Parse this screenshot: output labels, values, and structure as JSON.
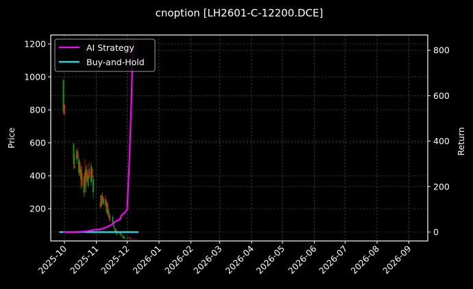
{
  "chart_data": {
    "type": "line",
    "title": "cnoption [LH2601-C-12200.DCE]",
    "xlabel": "",
    "ylabel": "Price",
    "y2label": "Return",
    "ylim": [
      13,
      1250
    ],
    "y2lim": [
      -40,
      866
    ],
    "grid": true,
    "legend_position": "upper left",
    "x_tick_labels": [
      "2025-10",
      "2025-11",
      "2025-12",
      "2026-01",
      "2026-02",
      "2026-03",
      "2026-04",
      "2026-05",
      "2026-06",
      "2026-07",
      "2026-08",
      "2026-09"
    ],
    "y_tick_labels": [
      "200",
      "400",
      "600",
      "800",
      "1000",
      "1200"
    ],
    "y2_tick_labels": [
      "0",
      "200",
      "400",
      "600",
      "800"
    ],
    "legend": [
      "AI Strategy",
      "Buy-and-Hold"
    ],
    "candles": {
      "description": "Daily OHLC candlesticks on the Price (left) axis; green = up, red = down",
      "data": [
        {
          "date": "2025-09-30",
          "open": 790,
          "high": 985,
          "low": 775,
          "close": 980,
          "color": "green"
        },
        {
          "date": "2025-10-01",
          "open": 830,
          "high": 835,
          "low": 760,
          "close": 775,
          "color": "red"
        },
        {
          "date": "2025-10-10",
          "open": 470,
          "high": 600,
          "low": 440,
          "close": 590,
          "color": "green"
        },
        {
          "date": "2025-10-11",
          "open": 460,
          "high": 530,
          "low": 440,
          "close": 450,
          "color": "red"
        },
        {
          "date": "2025-10-13",
          "open": 500,
          "high": 560,
          "low": 470,
          "close": 550,
          "color": "green"
        },
        {
          "date": "2025-10-14",
          "open": 540,
          "high": 570,
          "low": 500,
          "close": 510,
          "color": "red"
        },
        {
          "date": "2025-10-15",
          "open": 420,
          "high": 520,
          "low": 400,
          "close": 500,
          "color": "green"
        },
        {
          "date": "2025-10-16",
          "open": 480,
          "high": 490,
          "low": 400,
          "close": 410,
          "color": "red"
        },
        {
          "date": "2025-10-17",
          "open": 380,
          "high": 460,
          "low": 320,
          "close": 440,
          "color": "green"
        },
        {
          "date": "2025-10-18",
          "open": 420,
          "high": 460,
          "low": 330,
          "close": 340,
          "color": "red"
        },
        {
          "date": "2025-10-20",
          "open": 300,
          "high": 400,
          "low": 270,
          "close": 390,
          "color": "green"
        },
        {
          "date": "2025-10-21",
          "open": 420,
          "high": 500,
          "low": 290,
          "close": 330,
          "color": "red"
        },
        {
          "date": "2025-10-22",
          "open": 380,
          "high": 460,
          "low": 300,
          "close": 440,
          "color": "green"
        },
        {
          "date": "2025-10-23",
          "open": 430,
          "high": 470,
          "low": 360,
          "close": 370,
          "color": "red"
        },
        {
          "date": "2025-10-24",
          "open": 340,
          "high": 410,
          "low": 330,
          "close": 400,
          "color": "green"
        },
        {
          "date": "2025-10-25",
          "open": 440,
          "high": 480,
          "low": 380,
          "close": 390,
          "color": "red"
        },
        {
          "date": "2025-10-27",
          "open": 360,
          "high": 480,
          "low": 340,
          "close": 460,
          "color": "green"
        },
        {
          "date": "2025-10-28",
          "open": 440,
          "high": 450,
          "low": 380,
          "close": 390,
          "color": "red"
        },
        {
          "date": "2025-10-29",
          "open": 300,
          "high": 400,
          "low": 260,
          "close": 380,
          "color": "green"
        },
        {
          "date": "2025-11-05",
          "open": 240,
          "high": 280,
          "low": 200,
          "close": 210,
          "color": "red"
        },
        {
          "date": "2025-11-06",
          "open": 220,
          "high": 290,
          "low": 210,
          "close": 280,
          "color": "green"
        },
        {
          "date": "2025-11-07",
          "open": 280,
          "high": 300,
          "low": 230,
          "close": 240,
          "color": "red"
        },
        {
          "date": "2025-11-08",
          "open": 230,
          "high": 270,
          "low": 220,
          "close": 260,
          "color": "green"
        },
        {
          "date": "2025-11-10",
          "open": 260,
          "high": 280,
          "low": 210,
          "close": 220,
          "color": "red"
        },
        {
          "date": "2025-11-11",
          "open": 180,
          "high": 250,
          "low": 170,
          "close": 240,
          "color": "green"
        },
        {
          "date": "2025-11-12",
          "open": 230,
          "high": 240,
          "low": 160,
          "close": 170,
          "color": "red"
        },
        {
          "date": "2025-11-13",
          "open": 150,
          "high": 200,
          "low": 140,
          "close": 190,
          "color": "green"
        },
        {
          "date": "2025-11-14",
          "open": 160,
          "high": 170,
          "low": 120,
          "close": 130,
          "color": "red"
        },
        {
          "date": "2025-11-17",
          "open": 110,
          "high": 160,
          "low": 100,
          "close": 150,
          "color": "green"
        },
        {
          "date": "2025-11-18",
          "open": 100,
          "high": 120,
          "low": 80,
          "close": 90,
          "color": "green"
        },
        {
          "date": "2025-11-19",
          "open": 70,
          "high": 90,
          "low": 60,
          "close": 80,
          "color": "green"
        },
        {
          "date": "2025-11-20",
          "open": 70,
          "high": 80,
          "low": 50,
          "close": 55,
          "color": "red"
        },
        {
          "date": "2025-11-21",
          "open": 45,
          "high": 70,
          "low": 40,
          "close": 60,
          "color": "green"
        },
        {
          "date": "2025-11-24",
          "open": 60,
          "high": 65,
          "low": 40,
          "close": 45,
          "color": "red"
        },
        {
          "date": "2025-11-25",
          "open": 40,
          "high": 55,
          "low": 30,
          "close": 50,
          "color": "green"
        },
        {
          "date": "2025-11-27",
          "open": 35,
          "high": 40,
          "low": 20,
          "close": 25,
          "color": "green"
        },
        {
          "date": "2025-11-28",
          "open": 30,
          "high": 35,
          "low": 18,
          "close": 20,
          "color": "green"
        },
        {
          "date": "2025-12-01",
          "open": 20,
          "high": 25,
          "low": 14,
          "close": 15,
          "color": "green"
        },
        {
          "date": "2025-12-03",
          "open": 22,
          "high": 30,
          "low": 15,
          "close": 18,
          "color": "red"
        },
        {
          "date": "2025-12-05",
          "open": 18,
          "high": 22,
          "low": 13,
          "close": 14,
          "color": "red"
        },
        {
          "date": "2025-12-08",
          "open": 16,
          "high": 18,
          "low": 13,
          "close": 14,
          "color": "red"
        }
      ]
    },
    "series": [
      {
        "name": "AI Strategy",
        "axis": "right",
        "color": "#ff00ff",
        "x": [
          "2025-09-30",
          "2025-10-10",
          "2025-10-20",
          "2025-10-25",
          "2025-10-30",
          "2025-11-05",
          "2025-11-10",
          "2025-11-14",
          "2025-11-17",
          "2025-11-19",
          "2025-11-21",
          "2025-11-24",
          "2025-11-25",
          "2025-11-27",
          "2025-11-28",
          "2025-12-01",
          "2025-12-02",
          "2025-12-03",
          "2025-12-04",
          "2025-12-05",
          "2025-12-06",
          "2025-12-07"
        ],
        "values": [
          0,
          0,
          2,
          5,
          10,
          12,
          20,
          28,
          35,
          45,
          50,
          55,
          70,
          80,
          82,
          100,
          200,
          300,
          420,
          560,
          720,
          850
        ]
      },
      {
        "name": "Buy-and-Hold",
        "axis": "right",
        "color": "#00e5ee",
        "x": [
          "2025-09-26",
          "2025-12-12"
        ],
        "values": [
          0,
          0
        ]
      }
    ]
  }
}
